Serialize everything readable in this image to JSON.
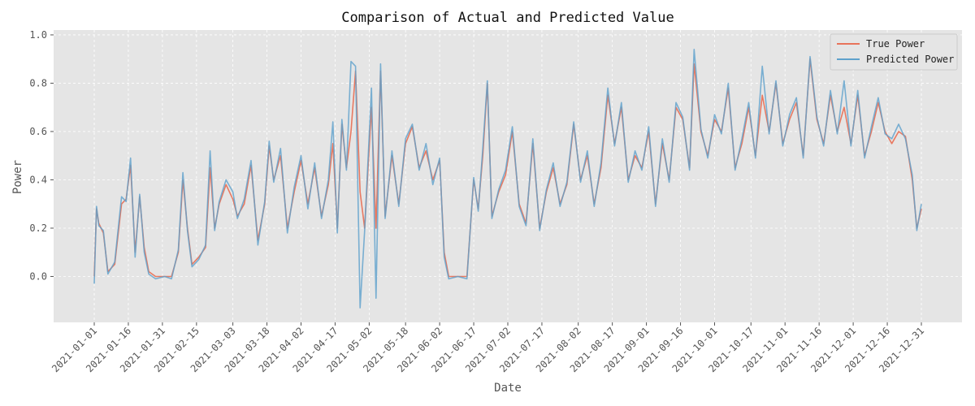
{
  "chart_data": {
    "type": "line",
    "title": "Comparison of Actual and Predicted Value",
    "xlabel": "Date",
    "ylabel": "Power",
    "ylim": [
      -0.19,
      1.02
    ],
    "yticks": [
      "0.0",
      "0.2",
      "0.4",
      "0.6",
      "0.8",
      "1.0"
    ],
    "x_range": [
      "2021-01-01",
      "2021-12-31"
    ],
    "xticks": [
      "2021-01-01",
      "2021-01-16",
      "2021-01-31",
      "2021-02-15",
      "2021-03-03",
      "2021-03-18",
      "2021-04-02",
      "2021-04-17",
      "2021-05-02",
      "2021-05-18",
      "2021-06-02",
      "2021-06-17",
      "2021-07-02",
      "2021-07-17",
      "2021-08-02",
      "2021-08-17",
      "2021-09-01",
      "2021-09-16",
      "2021-10-01",
      "2021-10-17",
      "2021-11-01",
      "2021-11-16",
      "2021-12-01",
      "2021-12-16",
      "2021-12-31"
    ],
    "grid": true,
    "legend_position": "top-right",
    "colors": {
      "true_power": "#E8735A",
      "predicted_power": "#5FA1CC",
      "background": "#E5E5E5",
      "grid": "#FFFFFF"
    },
    "series": [
      {
        "name": "True Power",
        "color": "#E8735A",
        "points": [
          [
            "2021-01-01",
            0.0
          ],
          [
            "2021-01-02",
            0.28
          ],
          [
            "2021-01-03",
            0.22
          ],
          [
            "2021-01-05",
            0.18
          ],
          [
            "2021-01-07",
            0.02
          ],
          [
            "2021-01-10",
            0.05
          ],
          [
            "2021-01-13",
            0.3
          ],
          [
            "2021-01-15",
            0.32
          ],
          [
            "2021-01-17",
            0.46
          ],
          [
            "2021-01-19",
            0.1
          ],
          [
            "2021-01-21",
            0.33
          ],
          [
            "2021-01-23",
            0.12
          ],
          [
            "2021-01-25",
            0.02
          ],
          [
            "2021-01-28",
            0.0
          ],
          [
            "2021-02-01",
            0.0
          ],
          [
            "2021-02-04",
            0.0
          ],
          [
            "2021-02-07",
            0.1
          ],
          [
            "2021-02-09",
            0.4
          ],
          [
            "2021-02-11",
            0.2
          ],
          [
            "2021-02-13",
            0.05
          ],
          [
            "2021-02-16",
            0.08
          ],
          [
            "2021-02-19",
            0.12
          ],
          [
            "2021-02-21",
            0.45
          ],
          [
            "2021-02-23",
            0.2
          ],
          [
            "2021-02-25",
            0.3
          ],
          [
            "2021-02-28",
            0.38
          ],
          [
            "2021-03-03",
            0.32
          ],
          [
            "2021-03-05",
            0.25
          ],
          [
            "2021-03-08",
            0.3
          ],
          [
            "2021-03-11",
            0.46
          ],
          [
            "2021-03-14",
            0.15
          ],
          [
            "2021-03-17",
            0.3
          ],
          [
            "2021-03-19",
            0.54
          ],
          [
            "2021-03-21",
            0.4
          ],
          [
            "2021-03-24",
            0.5
          ],
          [
            "2021-03-27",
            0.2
          ],
          [
            "2021-03-30",
            0.35
          ],
          [
            "2021-04-02",
            0.48
          ],
          [
            "2021-04-05",
            0.3
          ],
          [
            "2021-04-08",
            0.45
          ],
          [
            "2021-04-11",
            0.25
          ],
          [
            "2021-04-14",
            0.38
          ],
          [
            "2021-04-16",
            0.55
          ],
          [
            "2021-04-18",
            0.2
          ],
          [
            "2021-04-20",
            0.63
          ],
          [
            "2021-04-22",
            0.45
          ],
          [
            "2021-04-24",
            0.6
          ],
          [
            "2021-04-26",
            0.85
          ],
          [
            "2021-04-28",
            0.35
          ],
          [
            "2021-04-30",
            0.2
          ],
          [
            "2021-05-03",
            0.7
          ],
          [
            "2021-05-05",
            0.2
          ],
          [
            "2021-05-07",
            0.85
          ],
          [
            "2021-05-09",
            0.25
          ],
          [
            "2021-05-12",
            0.5
          ],
          [
            "2021-05-15",
            0.3
          ],
          [
            "2021-05-18",
            0.55
          ],
          [
            "2021-05-21",
            0.62
          ],
          [
            "2021-05-24",
            0.45
          ],
          [
            "2021-05-27",
            0.52
          ],
          [
            "2021-05-30",
            0.4
          ],
          [
            "2021-06-02",
            0.48
          ],
          [
            "2021-06-04",
            0.1
          ],
          [
            "2021-06-06",
            0.0
          ],
          [
            "2021-06-10",
            0.0
          ],
          [
            "2021-06-14",
            0.0
          ],
          [
            "2021-06-17",
            0.4
          ],
          [
            "2021-06-19",
            0.28
          ],
          [
            "2021-06-21",
            0.5
          ],
          [
            "2021-06-23",
            0.8
          ],
          [
            "2021-06-25",
            0.25
          ],
          [
            "2021-06-28",
            0.35
          ],
          [
            "2021-07-01",
            0.42
          ],
          [
            "2021-07-04",
            0.6
          ],
          [
            "2021-07-07",
            0.3
          ],
          [
            "2021-07-10",
            0.22
          ],
          [
            "2021-07-13",
            0.55
          ],
          [
            "2021-07-16",
            0.2
          ],
          [
            "2021-07-19",
            0.35
          ],
          [
            "2021-07-22",
            0.45
          ],
          [
            "2021-07-25",
            0.3
          ],
          [
            "2021-07-28",
            0.38
          ],
          [
            "2021-07-31",
            0.63
          ],
          [
            "2021-08-03",
            0.4
          ],
          [
            "2021-08-06",
            0.5
          ],
          [
            "2021-08-09",
            0.3
          ],
          [
            "2021-08-12",
            0.45
          ],
          [
            "2021-08-15",
            0.75
          ],
          [
            "2021-08-18",
            0.55
          ],
          [
            "2021-08-21",
            0.7
          ],
          [
            "2021-08-24",
            0.4
          ],
          [
            "2021-08-27",
            0.5
          ],
          [
            "2021-08-30",
            0.45
          ],
          [
            "2021-09-02",
            0.6
          ],
          [
            "2021-09-05",
            0.3
          ],
          [
            "2021-09-08",
            0.55
          ],
          [
            "2021-09-11",
            0.4
          ],
          [
            "2021-09-14",
            0.7
          ],
          [
            "2021-09-17",
            0.65
          ],
          [
            "2021-09-20",
            0.45
          ],
          [
            "2021-09-22",
            0.88
          ],
          [
            "2021-09-25",
            0.6
          ],
          [
            "2021-09-28",
            0.5
          ],
          [
            "2021-10-01",
            0.65
          ],
          [
            "2021-10-04",
            0.6
          ],
          [
            "2021-10-07",
            0.78
          ],
          [
            "2021-10-10",
            0.45
          ],
          [
            "2021-10-13",
            0.55
          ],
          [
            "2021-10-16",
            0.7
          ],
          [
            "2021-10-19",
            0.5
          ],
          [
            "2021-10-22",
            0.75
          ],
          [
            "2021-10-25",
            0.6
          ],
          [
            "2021-10-28",
            0.8
          ],
          [
            "2021-10-31",
            0.55
          ],
          [
            "2021-11-03",
            0.65
          ],
          [
            "2021-11-06",
            0.72
          ],
          [
            "2021-11-09",
            0.5
          ],
          [
            "2021-11-12",
            0.9
          ],
          [
            "2021-11-15",
            0.65
          ],
          [
            "2021-11-18",
            0.55
          ],
          [
            "2021-11-21",
            0.75
          ],
          [
            "2021-11-24",
            0.6
          ],
          [
            "2021-11-27",
            0.7
          ],
          [
            "2021-11-30",
            0.55
          ],
          [
            "2021-12-03",
            0.75
          ],
          [
            "2021-12-06",
            0.5
          ],
          [
            "2021-12-09",
            0.6
          ],
          [
            "2021-12-12",
            0.72
          ],
          [
            "2021-12-15",
            0.6
          ],
          [
            "2021-12-18",
            0.55
          ],
          [
            "2021-12-21",
            0.6
          ],
          [
            "2021-12-24",
            0.58
          ],
          [
            "2021-12-27",
            0.4
          ],
          [
            "2021-12-29",
            0.2
          ],
          [
            "2021-12-31",
            0.28
          ]
        ]
      },
      {
        "name": "Predicted Power",
        "color": "#5FA1CC",
        "points": [
          [
            "2021-01-01",
            -0.03
          ],
          [
            "2021-01-02",
            0.29
          ],
          [
            "2021-01-03",
            0.21
          ],
          [
            "2021-01-05",
            0.19
          ],
          [
            "2021-01-07",
            0.01
          ],
          [
            "2021-01-10",
            0.06
          ],
          [
            "2021-01-13",
            0.33
          ],
          [
            "2021-01-15",
            0.31
          ],
          [
            "2021-01-17",
            0.49
          ],
          [
            "2021-01-19",
            0.08
          ],
          [
            "2021-01-21",
            0.34
          ],
          [
            "2021-01-23",
            0.1
          ],
          [
            "2021-01-25",
            0.01
          ],
          [
            "2021-01-28",
            -0.01
          ],
          [
            "2021-02-01",
            0.0
          ],
          [
            "2021-02-04",
            -0.01
          ],
          [
            "2021-02-07",
            0.11
          ],
          [
            "2021-02-09",
            0.43
          ],
          [
            "2021-02-11",
            0.19
          ],
          [
            "2021-02-13",
            0.04
          ],
          [
            "2021-02-16",
            0.07
          ],
          [
            "2021-02-19",
            0.13
          ],
          [
            "2021-02-21",
            0.52
          ],
          [
            "2021-02-23",
            0.19
          ],
          [
            "2021-02-25",
            0.31
          ],
          [
            "2021-02-28",
            0.4
          ],
          [
            "2021-03-03",
            0.35
          ],
          [
            "2021-03-05",
            0.24
          ],
          [
            "2021-03-08",
            0.32
          ],
          [
            "2021-03-11",
            0.48
          ],
          [
            "2021-03-14",
            0.13
          ],
          [
            "2021-03-17",
            0.31
          ],
          [
            "2021-03-19",
            0.56
          ],
          [
            "2021-03-21",
            0.39
          ],
          [
            "2021-03-24",
            0.53
          ],
          [
            "2021-03-27",
            0.18
          ],
          [
            "2021-03-30",
            0.37
          ],
          [
            "2021-04-02",
            0.5
          ],
          [
            "2021-04-05",
            0.28
          ],
          [
            "2021-04-08",
            0.47
          ],
          [
            "2021-04-11",
            0.24
          ],
          [
            "2021-04-14",
            0.4
          ],
          [
            "2021-04-16",
            0.64
          ],
          [
            "2021-04-18",
            0.18
          ],
          [
            "2021-04-20",
            0.65
          ],
          [
            "2021-04-22",
            0.44
          ],
          [
            "2021-04-24",
            0.89
          ],
          [
            "2021-04-26",
            0.87
          ],
          [
            "2021-04-28",
            -0.13
          ],
          [
            "2021-04-30",
            0.19
          ],
          [
            "2021-05-03",
            0.78
          ],
          [
            "2021-05-05",
            -0.09
          ],
          [
            "2021-05-07",
            0.88
          ],
          [
            "2021-05-09",
            0.24
          ],
          [
            "2021-05-12",
            0.52
          ],
          [
            "2021-05-15",
            0.29
          ],
          [
            "2021-05-18",
            0.57
          ],
          [
            "2021-05-21",
            0.63
          ],
          [
            "2021-05-24",
            0.44
          ],
          [
            "2021-05-27",
            0.55
          ],
          [
            "2021-05-30",
            0.38
          ],
          [
            "2021-06-02",
            0.49
          ],
          [
            "2021-06-04",
            0.08
          ],
          [
            "2021-06-06",
            -0.01
          ],
          [
            "2021-06-10",
            0.0
          ],
          [
            "2021-06-14",
            -0.01
          ],
          [
            "2021-06-17",
            0.41
          ],
          [
            "2021-06-19",
            0.27
          ],
          [
            "2021-06-21",
            0.53
          ],
          [
            "2021-06-23",
            0.81
          ],
          [
            "2021-06-25",
            0.24
          ],
          [
            "2021-06-28",
            0.36
          ],
          [
            "2021-07-01",
            0.44
          ],
          [
            "2021-07-04",
            0.62
          ],
          [
            "2021-07-07",
            0.29
          ],
          [
            "2021-07-10",
            0.21
          ],
          [
            "2021-07-13",
            0.57
          ],
          [
            "2021-07-16",
            0.19
          ],
          [
            "2021-07-19",
            0.36
          ],
          [
            "2021-07-22",
            0.47
          ],
          [
            "2021-07-25",
            0.29
          ],
          [
            "2021-07-28",
            0.39
          ],
          [
            "2021-07-31",
            0.64
          ],
          [
            "2021-08-03",
            0.39
          ],
          [
            "2021-08-06",
            0.52
          ],
          [
            "2021-08-09",
            0.29
          ],
          [
            "2021-08-12",
            0.47
          ],
          [
            "2021-08-15",
            0.78
          ],
          [
            "2021-08-18",
            0.54
          ],
          [
            "2021-08-21",
            0.72
          ],
          [
            "2021-08-24",
            0.39
          ],
          [
            "2021-08-27",
            0.52
          ],
          [
            "2021-08-30",
            0.44
          ],
          [
            "2021-09-02",
            0.62
          ],
          [
            "2021-09-05",
            0.29
          ],
          [
            "2021-09-08",
            0.57
          ],
          [
            "2021-09-11",
            0.39
          ],
          [
            "2021-09-14",
            0.72
          ],
          [
            "2021-09-17",
            0.66
          ],
          [
            "2021-09-20",
            0.44
          ],
          [
            "2021-09-22",
            0.94
          ],
          [
            "2021-09-25",
            0.61
          ],
          [
            "2021-09-28",
            0.49
          ],
          [
            "2021-10-01",
            0.67
          ],
          [
            "2021-10-04",
            0.59
          ],
          [
            "2021-10-07",
            0.8
          ],
          [
            "2021-10-10",
            0.44
          ],
          [
            "2021-10-13",
            0.57
          ],
          [
            "2021-10-16",
            0.72
          ],
          [
            "2021-10-19",
            0.49
          ],
          [
            "2021-10-22",
            0.87
          ],
          [
            "2021-10-25",
            0.59
          ],
          [
            "2021-10-28",
            0.81
          ],
          [
            "2021-10-31",
            0.54
          ],
          [
            "2021-11-03",
            0.67
          ],
          [
            "2021-11-06",
            0.74
          ],
          [
            "2021-11-09",
            0.49
          ],
          [
            "2021-11-12",
            0.91
          ],
          [
            "2021-11-15",
            0.66
          ],
          [
            "2021-11-18",
            0.54
          ],
          [
            "2021-11-21",
            0.77
          ],
          [
            "2021-11-24",
            0.59
          ],
          [
            "2021-11-27",
            0.81
          ],
          [
            "2021-11-30",
            0.54
          ],
          [
            "2021-12-03",
            0.77
          ],
          [
            "2021-12-06",
            0.49
          ],
          [
            "2021-12-09",
            0.62
          ],
          [
            "2021-12-12",
            0.74
          ],
          [
            "2021-12-15",
            0.59
          ],
          [
            "2021-12-18",
            0.57
          ],
          [
            "2021-12-21",
            0.63
          ],
          [
            "2021-12-24",
            0.57
          ],
          [
            "2021-12-27",
            0.42
          ],
          [
            "2021-12-29",
            0.19
          ],
          [
            "2021-12-31",
            0.3
          ]
        ]
      }
    ]
  }
}
